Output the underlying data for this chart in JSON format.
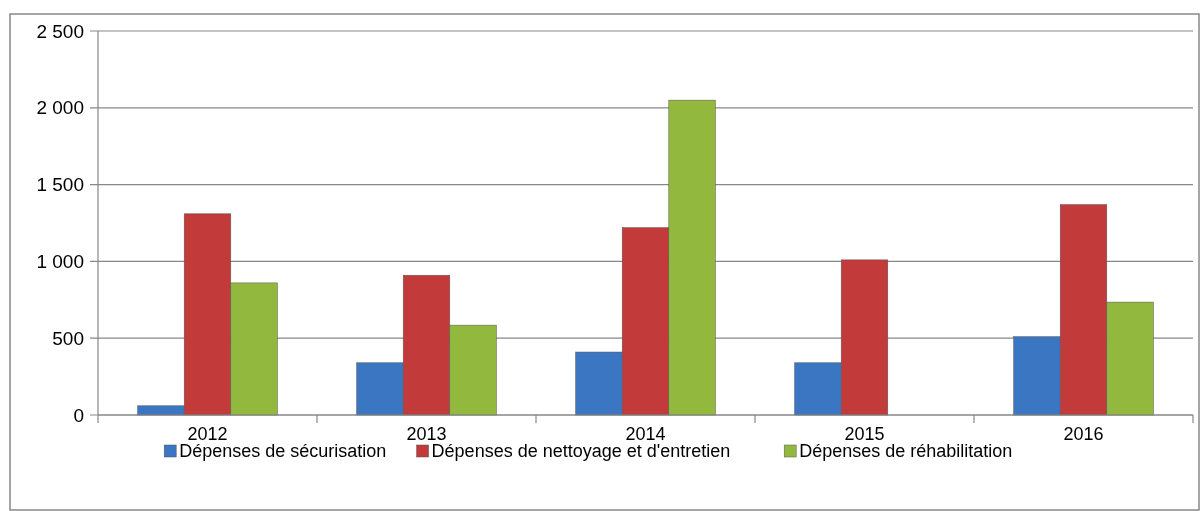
{
  "chart_data": {
    "type": "bar",
    "categories": [
      "2012",
      "2013",
      "2014",
      "2015",
      "2016"
    ],
    "series": [
      {
        "name": "Dépenses de sécurisation",
        "color": "#3b76c2",
        "values": [
          60,
          340,
          410,
          340,
          510
        ]
      },
      {
        "name": "Dépenses de nettoyage et d'entretien",
        "color": "#c23b3a",
        "values": [
          1310,
          910,
          1220,
          1010,
          1370
        ]
      },
      {
        "name": "Dépenses de réhabilitation",
        "color": "#92b83e",
        "values": [
          860,
          585,
          2050,
          null,
          735
        ]
      }
    ],
    "ylim": [
      0,
      2500
    ],
    "yticks": [
      0,
      {
        "value": 500,
        "label": "500"
      },
      {
        "value": 1000,
        "label": "1 000"
      },
      {
        "value": 1500,
        "label": "1 500"
      },
      {
        "value": 2000,
        "label": "2 000"
      },
      {
        "value": 2500,
        "label": "2 500"
      }
    ],
    "grid": "y",
    "legend": "bottom"
  }
}
